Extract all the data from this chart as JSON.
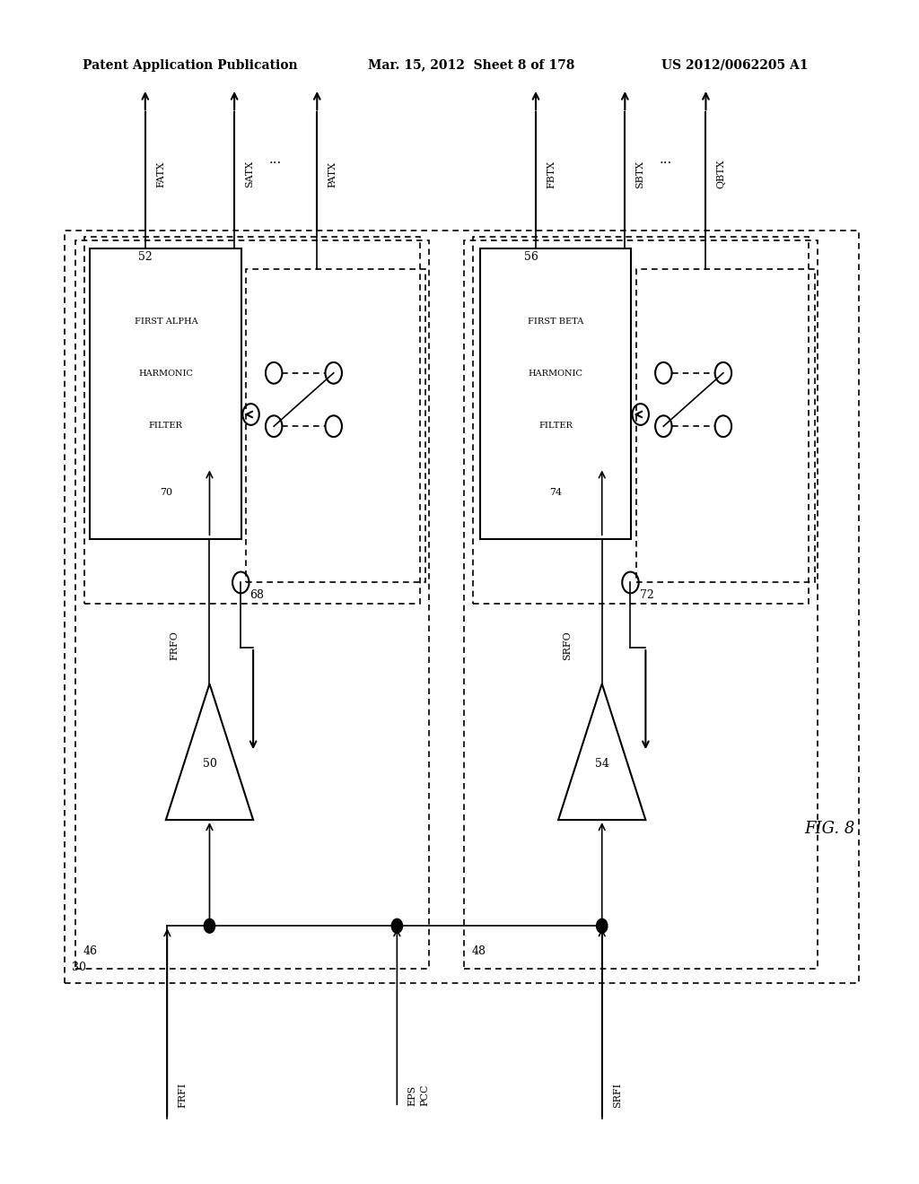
{
  "background_color": "#ffffff",
  "header_text1": "Patent Application Publication",
  "header_text2": "Mar. 15, 2012  Sheet 8 of 178",
  "header_text3": "US 2012/0062205 A1",
  "fig_label": "FIG. 8",
  "label_30": "30",
  "label_46": "46",
  "label_48": "48",
  "label_50": "50",
  "label_52": "52",
  "label_54": "54",
  "label_56": "56",
  "label_68": "68",
  "label_70": "70",
  "label_72": "72",
  "label_74": "74",
  "label_FATX": "FATX",
  "label_SATX": "SATX",
  "label_PATX": "PATX",
  "label_FBTX": "FBTX",
  "label_SBTX": "SBTX",
  "label_QBTX": "QBTX",
  "label_FRFO": "FRFO",
  "label_SRFO": "SRFO",
  "label_FRFI": "FRFI",
  "label_SRFI": "SRFI",
  "label_EPS": "EPS",
  "label_PCC": "PCC",
  "filter_text_left": [
    "FIRST ALPHA",
    "HARMONIC",
    "FILTER",
    "70"
  ],
  "filter_text_right": [
    "FIRST BETA",
    "HARMONIC",
    "FILTER",
    "74"
  ],
  "line_color": "#000000",
  "line_width": 1.5,
  "dash_pattern": [
    4,
    3
  ]
}
